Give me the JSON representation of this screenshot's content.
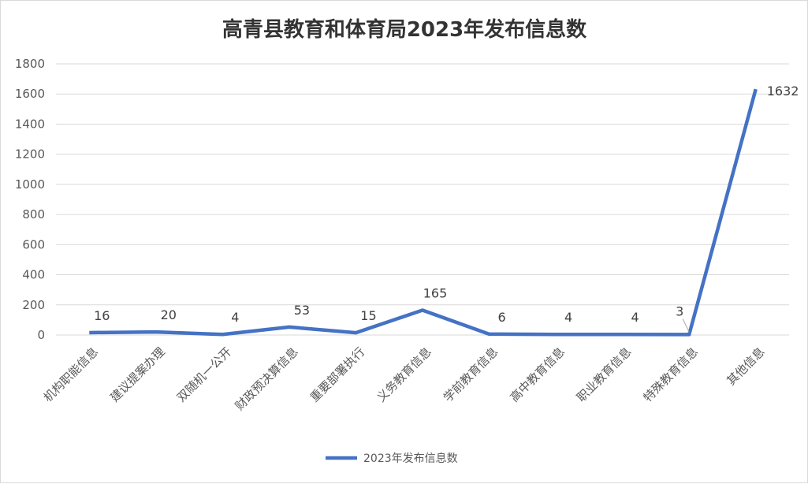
{
  "chart_data": {
    "type": "line",
    "title": "高青县教育和体育局2023年发布信息数",
    "categories": [
      "机构职能信息",
      "建议提案办理",
      "双随机一公开",
      "财政预决算信息",
      "重要部署执行",
      "义务教育信息",
      "学前教育信息",
      "高中教育信息",
      "职业教育信息",
      "特殊教育信息",
      "其他信息"
    ],
    "series": [
      {
        "name": "2023年发布信息数",
        "values": [
          16,
          20,
          4,
          53,
          15,
          165,
          6,
          4,
          4,
          3,
          1632
        ],
        "color": "#4472c4"
      }
    ],
    "xlabel": "",
    "ylabel": "",
    "ylim": [
      0,
      1800
    ],
    "yticks": [
      0,
      200,
      400,
      600,
      800,
      1000,
      1200,
      1400,
      1600,
      1800
    ],
    "grid": true,
    "data_labels": true,
    "legend": "bottom"
  }
}
